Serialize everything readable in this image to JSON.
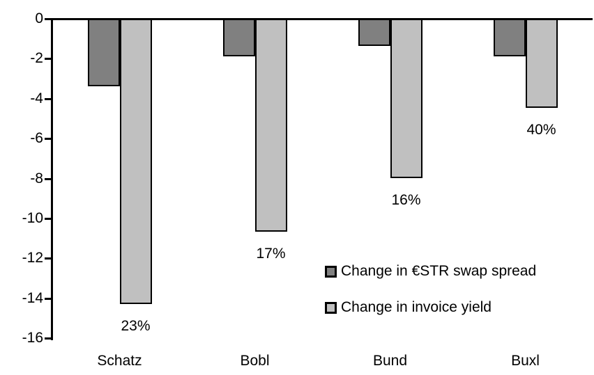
{
  "chart_data": {
    "type": "bar",
    "orientation": "vertical",
    "categories": [
      "Schatz",
      "Bobl",
      "Bund",
      "Buxl"
    ],
    "series": [
      {
        "name": "Change in €STR swap spread",
        "color": "#808080",
        "values": [
          -3.3,
          -1.8,
          -1.3,
          -1.8
        ]
      },
      {
        "name": "Change in invoice yield",
        "color": "#c0c0c0",
        "values": [
          -14.2,
          -10.6,
          -7.9,
          -4.4
        ]
      }
    ],
    "bar_labels": {
      "series_index": 1,
      "values": [
        "23%",
        "17%",
        "16%",
        "40%"
      ]
    },
    "ylim": [
      -16,
      0
    ],
    "yticks": [
      0,
      -2,
      -4,
      -6,
      -8,
      -10,
      -12,
      -14,
      -16
    ],
    "ytick_labels": [
      "0",
      "-2",
      "-4",
      "-6",
      "-8",
      "-10",
      "-12",
      "-14",
      "-16"
    ],
    "grid": false,
    "legend": {
      "position": "inside-lower-right"
    },
    "colors": {
      "axis": "#000000",
      "bar_border": "#000000",
      "text": "#000000",
      "background": "#ffffff"
    }
  }
}
